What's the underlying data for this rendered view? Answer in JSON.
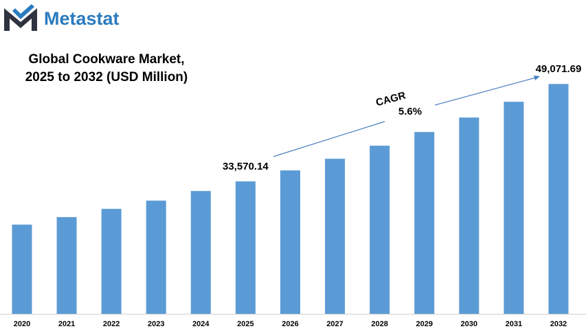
{
  "brand": "Metastat",
  "chart_data": {
    "type": "bar",
    "title": [
      "Global Cookware Market,",
      "2025 to 2032 (USD Million)"
    ],
    "categories": [
      "2020",
      "2021",
      "2022",
      "2023",
      "2024",
      "2025",
      "2026",
      "2027",
      "2028",
      "2029",
      "2030",
      "2031",
      "2032"
    ],
    "values": [
      26690,
      27890,
      29200,
      30510,
      32040,
      33570.14,
      35320,
      37170,
      39250,
      41430,
      43730,
      46240,
      49071.69
    ],
    "value_labels": [
      null,
      null,
      null,
      null,
      null,
      "33,570.14",
      null,
      null,
      null,
      null,
      null,
      null,
      "49,071.69"
    ],
    "color": "#5b9bd5",
    "ylim": [
      12500,
      55000
    ],
    "annotations": [
      "CAGR",
      "5.6%"
    ]
  }
}
